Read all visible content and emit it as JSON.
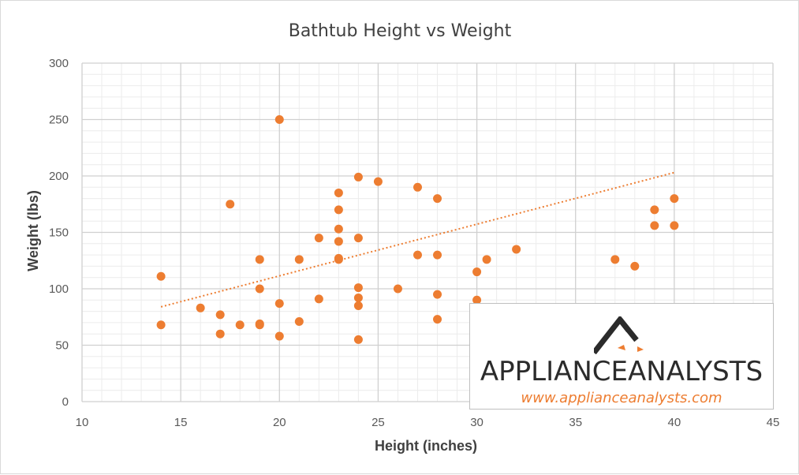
{
  "chart_data": {
    "type": "scatter",
    "title": "Bathtub Height vs Weight",
    "xlabel": "Height (inches)",
    "ylabel": "Weight (lbs)",
    "xlim": [
      10,
      45
    ],
    "ylim": [
      0,
      300
    ],
    "x_ticks": [
      10,
      15,
      20,
      25,
      30,
      35,
      40,
      45
    ],
    "y_ticks": [
      0,
      50,
      100,
      150,
      200,
      250,
      300
    ],
    "grid": true,
    "series": [
      {
        "color": "#ed7d31",
        "points": [
          [
            14,
            111
          ],
          [
            14,
            68
          ],
          [
            16,
            83
          ],
          [
            17,
            77
          ],
          [
            17,
            60
          ],
          [
            17.5,
            175
          ],
          [
            18,
            68
          ],
          [
            19,
            126
          ],
          [
            19,
            100
          ],
          [
            19,
            69
          ],
          [
            19,
            68
          ],
          [
            20,
            250
          ],
          [
            20,
            87
          ],
          [
            20,
            58
          ],
          [
            21,
            126
          ],
          [
            21,
            71
          ],
          [
            22,
            145
          ],
          [
            22,
            91
          ],
          [
            23,
            185
          ],
          [
            23,
            170
          ],
          [
            23,
            153
          ],
          [
            23,
            142
          ],
          [
            23,
            127
          ],
          [
            23,
            126
          ],
          [
            24,
            199
          ],
          [
            24,
            145
          ],
          [
            24,
            101
          ],
          [
            24,
            92
          ],
          [
            24,
            85
          ],
          [
            24,
            55
          ],
          [
            25,
            195
          ],
          [
            26,
            100
          ],
          [
            27,
            190
          ],
          [
            27,
            130
          ],
          [
            28,
            180
          ],
          [
            28,
            130
          ],
          [
            28,
            95
          ],
          [
            28,
            73
          ],
          [
            30,
            115
          ],
          [
            30,
            90
          ],
          [
            30.5,
            126
          ],
          [
            32,
            135
          ],
          [
            37,
            126
          ],
          [
            38,
            120
          ],
          [
            39,
            170
          ],
          [
            39,
            156
          ],
          [
            40,
            180
          ],
          [
            40,
            156
          ]
        ]
      }
    ],
    "trendline": {
      "type": "linear",
      "style": "dotted",
      "color": "#ed7d31",
      "x_range": [
        14,
        40
      ],
      "y_start": 84,
      "y_end": 203
    }
  },
  "logo": {
    "name": "APPLIANCEANALYSTS",
    "url": "www.applianceanalysts.com",
    "accent_color": "#ed7d31"
  }
}
